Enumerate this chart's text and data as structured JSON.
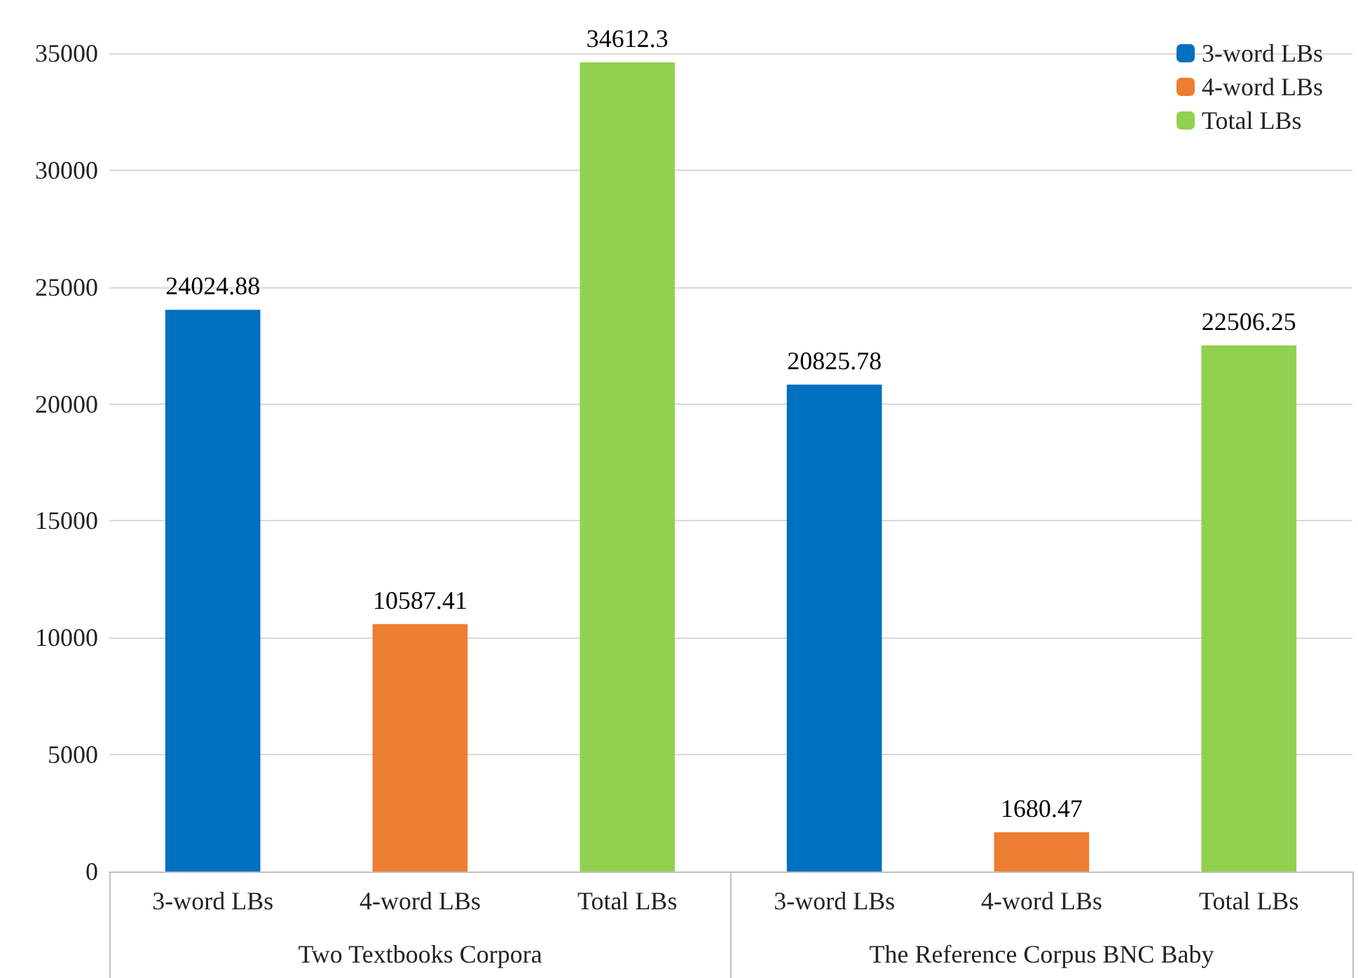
{
  "chart_data": {
    "type": "bar",
    "categories": [
      "Two Textbooks Corpora",
      "The Reference Corpus BNC Baby"
    ],
    "series": [
      {
        "name": "3-word LBs",
        "color": "#0070c0",
        "values": [
          24024.88,
          20825.78
        ]
      },
      {
        "name": "4-word LBs",
        "color": "#ed7d31",
        "values": [
          10587.41,
          1680.47
        ]
      },
      {
        "name": "Total LBs",
        "color": "#92d050",
        "values": [
          34612.3,
          22506.25
        ]
      }
    ],
    "ylim": [
      0,
      35000
    ],
    "yticks": [
      0,
      5000,
      10000,
      15000,
      20000,
      25000,
      30000,
      35000
    ],
    "grid": "y",
    "legend": "top right",
    "data_labels": true
  }
}
